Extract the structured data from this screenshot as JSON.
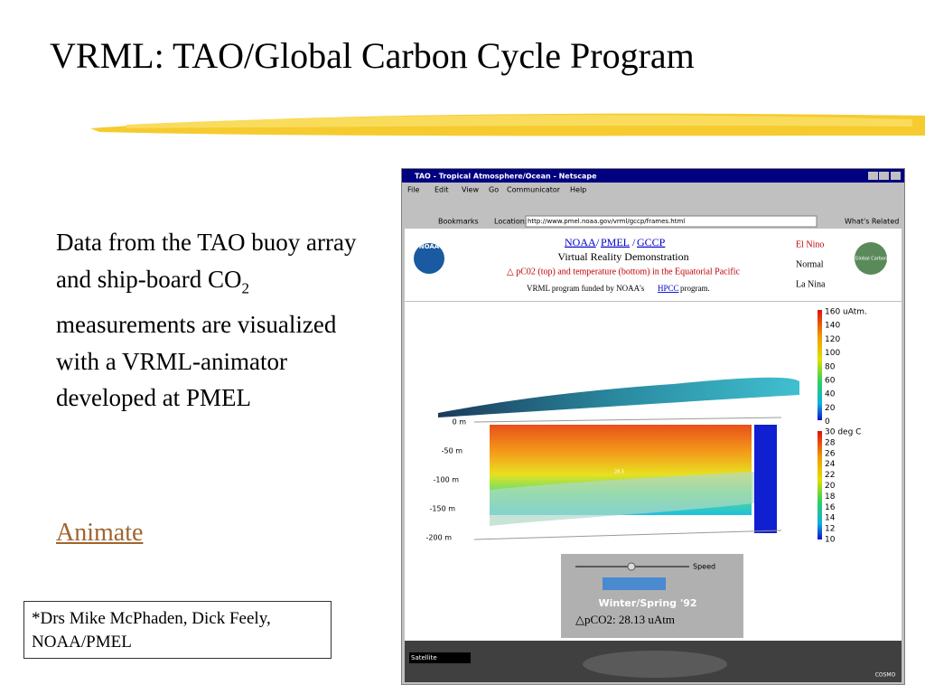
{
  "slide": {
    "title": "VRML: TAO/Global Carbon Cycle Program",
    "body": {
      "before": "Data from the TAO buoy array and ship-board CO",
      "subscript": "2",
      "after": " measurements are visualized with a VRML-animator developed at PMEL"
    },
    "link": "Animate",
    "footnote": [
      "*Drs Mike McPhaden, Dick Feely,",
      "NOAA/PMEL"
    ]
  },
  "browser": {
    "window_title": "TAO - Tropical Atmosphere/Ocean - Netscape",
    "menu": [
      "File",
      "Edit",
      "View",
      "Go",
      "Communicator",
      "Help"
    ],
    "bookmarks": "Bookmarks",
    "location_label": "Location:",
    "url": "http://www.pmel.noaa.gov/vrml/gccp/frames.html",
    "related": "What's Related"
  },
  "header": {
    "logo": "NOAA",
    "links": [
      "NOAA",
      "PMEL",
      "GCCP"
    ],
    "separator": "/",
    "subtitle": "Virtual Reality Demonstration",
    "description": "△ pC02 (top) and temperature (bottom) in the Equatorial Pacific",
    "funding": {
      "before": "VRML program funded by NOAA's ",
      "link": "HPCC",
      "after": " program."
    },
    "options": [
      "El Nino",
      "Normal",
      "La Nina"
    ],
    "badge": "NOAA Global Carbon Cycle"
  },
  "visualization": {
    "depths": [
      "0 m",
      "-50 m",
      "-100 m",
      "-150 m",
      "-200 m"
    ],
    "pco2_scale": [
      "160 uAtm.",
      "140",
      "120",
      "100",
      "80",
      "60",
      "40",
      "20",
      "0"
    ],
    "temperature_scale": [
      "30 deg C",
      "28",
      "26",
      "24",
      "22",
      "20",
      "18",
      "16",
      "14",
      "12",
      "10"
    ],
    "contour": "28.5"
  },
  "controls": {
    "speed": "Speed",
    "season": "Winter/Spring '92",
    "reading": "△pCO2: 28.13 uAtm"
  },
  "player": {
    "status": "Satellite",
    "brand": "COSMO"
  }
}
